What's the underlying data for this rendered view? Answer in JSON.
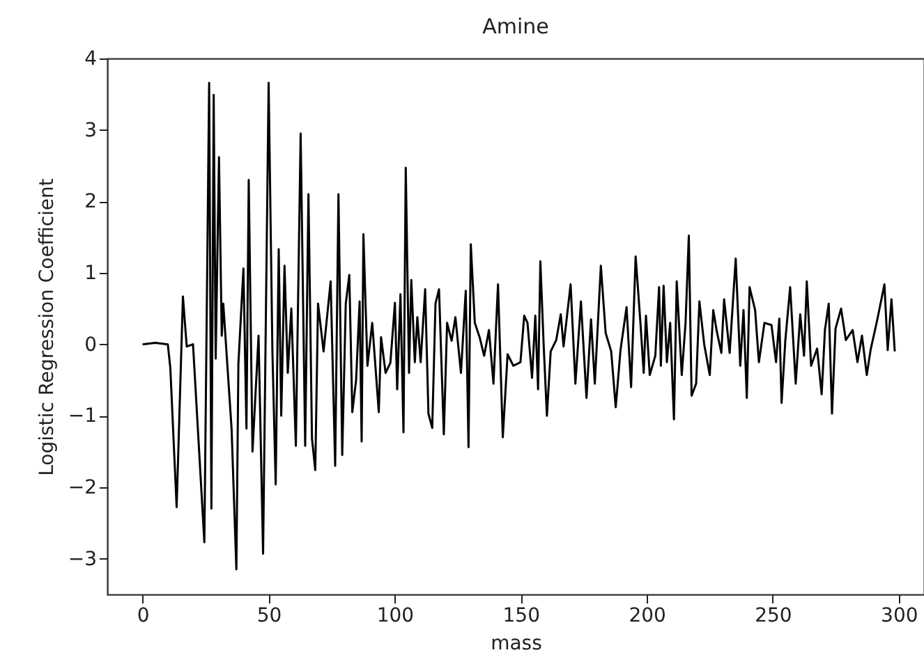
{
  "chart_data": {
    "type": "line",
    "title": "Amine",
    "xlabel": "mass",
    "ylabel": "Logistic Regression Coefficient",
    "xlim": [
      -14,
      310
    ],
    "ylim": [
      -3.5,
      4
    ],
    "xticks": [
      0,
      50,
      100,
      150,
      200,
      250,
      300
    ],
    "yticks": [
      -3,
      -2,
      -1,
      0,
      1,
      2,
      3,
      4
    ],
    "series": [
      {
        "color": "#000000",
        "x": [
          0,
          5,
          10,
          11,
          13.5,
          16,
          17.5,
          20,
          24.5,
          26.4,
          27.3,
          28.2,
          29,
          30.3,
          31.4,
          32,
          35.3,
          37.2,
          38,
          40,
          41.2,
          42.1,
          43.6,
          46,
          47.8,
          50,
          51.5,
          52.8,
          54,
          55,
          56.3,
          57.6,
          59,
          60.8,
          62.7,
          64.5,
          65.8,
          67.2,
          68.5,
          69.6,
          71.8,
          74.6,
          76.4,
          77.7,
          79.2,
          80.6,
          82,
          83.2,
          84.7,
          86.1,
          86.9,
          87.6,
          89.2,
          91.1,
          93.7,
          94.6,
          96.4,
          98.3,
          100.1,
          101,
          102.3,
          103.5,
          104.4,
          105.7,
          106.6,
          108,
          109,
          110.3,
          112.1,
          113.4,
          114.9,
          116.2,
          117.6,
          119.5,
          120.8,
          122.6,
          124.1,
          126.3,
          128.2,
          129.3,
          130.2,
          131.8,
          133.7,
          135.5,
          137.4,
          139.2,
          141,
          142.9,
          144.8,
          147.1,
          149.9,
          151.4,
          152.7,
          154.5,
          155.8,
          156.9,
          157.8,
          159.1,
          160.4,
          161.9,
          164.1,
          165.9,
          167,
          169.8,
          171.7,
          173.9,
          176.1,
          177.9,
          179.4,
          181.8,
          183.7,
          185.9,
          187.7,
          189.6,
          192,
          193.8,
          195.6,
          197.5,
          198.8,
          199.7,
          201.2,
          203.4,
          204.9,
          205.6,
          206.7,
          208,
          209.3,
          210.8,
          211.9,
          213.9,
          215.4,
          216.7,
          217.8,
          219.6,
          220.9,
          222.8,
          225,
          226.4,
          227.7,
          229.6,
          230.7,
          232.9,
          235.3,
          237.1,
          238.4,
          239.7,
          240.8,
          243,
          244.5,
          246.7,
          249.5,
          251.3,
          252.6,
          253.5,
          255,
          256.9,
          259.1,
          260.9,
          262.4,
          263.5,
          265.2,
          267.6,
          269.4,
          270.7,
          272.2,
          273.5,
          274.9,
          277.1,
          279,
          281.7,
          283.6,
          285.4,
          287.3,
          288.8,
          291.5,
          294.3,
          295.6,
          297.1,
          298.4
        ],
        "values": [
          0,
          0.02,
          0,
          -0.33,
          -2.28,
          0.67,
          -0.03,
          0,
          -2.77,
          3.66,
          -2.3,
          3.49,
          -0.2,
          2.62,
          0.12,
          0.57,
          -1.18,
          -3.15,
          -0.28,
          1.06,
          -1.18,
          2.3,
          -1.5,
          0.12,
          -2.93,
          3.66,
          -0.1,
          -1.96,
          1.33,
          -1.0,
          1.1,
          -0.4,
          0.5,
          -1.42,
          2.95,
          -1.42,
          2.1,
          -1.32,
          -1.76,
          0.57,
          -0.1,
          0.88,
          -1.7,
          2.1,
          -1.55,
          0.57,
          0.97,
          -0.95,
          -0.5,
          0.6,
          -1.36,
          1.54,
          -0.3,
          0.3,
          -0.95,
          0.1,
          -0.4,
          -0.26,
          0.58,
          -0.63,
          0.7,
          -1.23,
          2.47,
          -0.4,
          0.9,
          -0.25,
          0.38,
          -0.25,
          0.77,
          -0.97,
          -1.17,
          0.57,
          0.77,
          -1.26,
          0.3,
          0.05,
          0.38,
          -0.4,
          0.75,
          -1.44,
          1.4,
          0.3,
          0.1,
          -0.16,
          0.2,
          -0.55,
          0.84,
          -1.3,
          -0.14,
          -0.3,
          -0.25,
          0.4,
          0.3,
          -0.47,
          0.4,
          -0.63,
          1.16,
          0,
          -1.0,
          -0.1,
          0.06,
          0.42,
          -0.03,
          0.84,
          -0.55,
          0.6,
          -0.75,
          0.35,
          -0.55,
          1.1,
          0.16,
          -0.1,
          -0.88,
          -0.08,
          0.52,
          -0.6,
          1.23,
          0.3,
          -0.4,
          0.4,
          -0.43,
          -0.16,
          0.8,
          -0.3,
          0.82,
          -0.25,
          0.3,
          -1.05,
          0.88,
          -0.43,
          0.3,
          1.52,
          -0.72,
          -0.55,
          0.6,
          0,
          -0.43,
          0.48,
          0.2,
          -0.12,
          0.63,
          -0.12,
          1.2,
          -0.3,
          0.48,
          -0.75,
          0.8,
          0.48,
          -0.25,
          0.3,
          0.27,
          -0.25,
          0.36,
          -0.82,
          0.06,
          0.8,
          -0.55,
          0.42,
          -0.16,
          0.88,
          -0.3,
          -0.06,
          -0.7,
          0.2,
          0.57,
          -0.97,
          0.22,
          0.5,
          0.06,
          0.2,
          -0.25,
          0.12,
          -0.43,
          -0.08,
          0.35,
          0.84,
          -0.08,
          0.63,
          -0.1
        ]
      }
    ]
  }
}
